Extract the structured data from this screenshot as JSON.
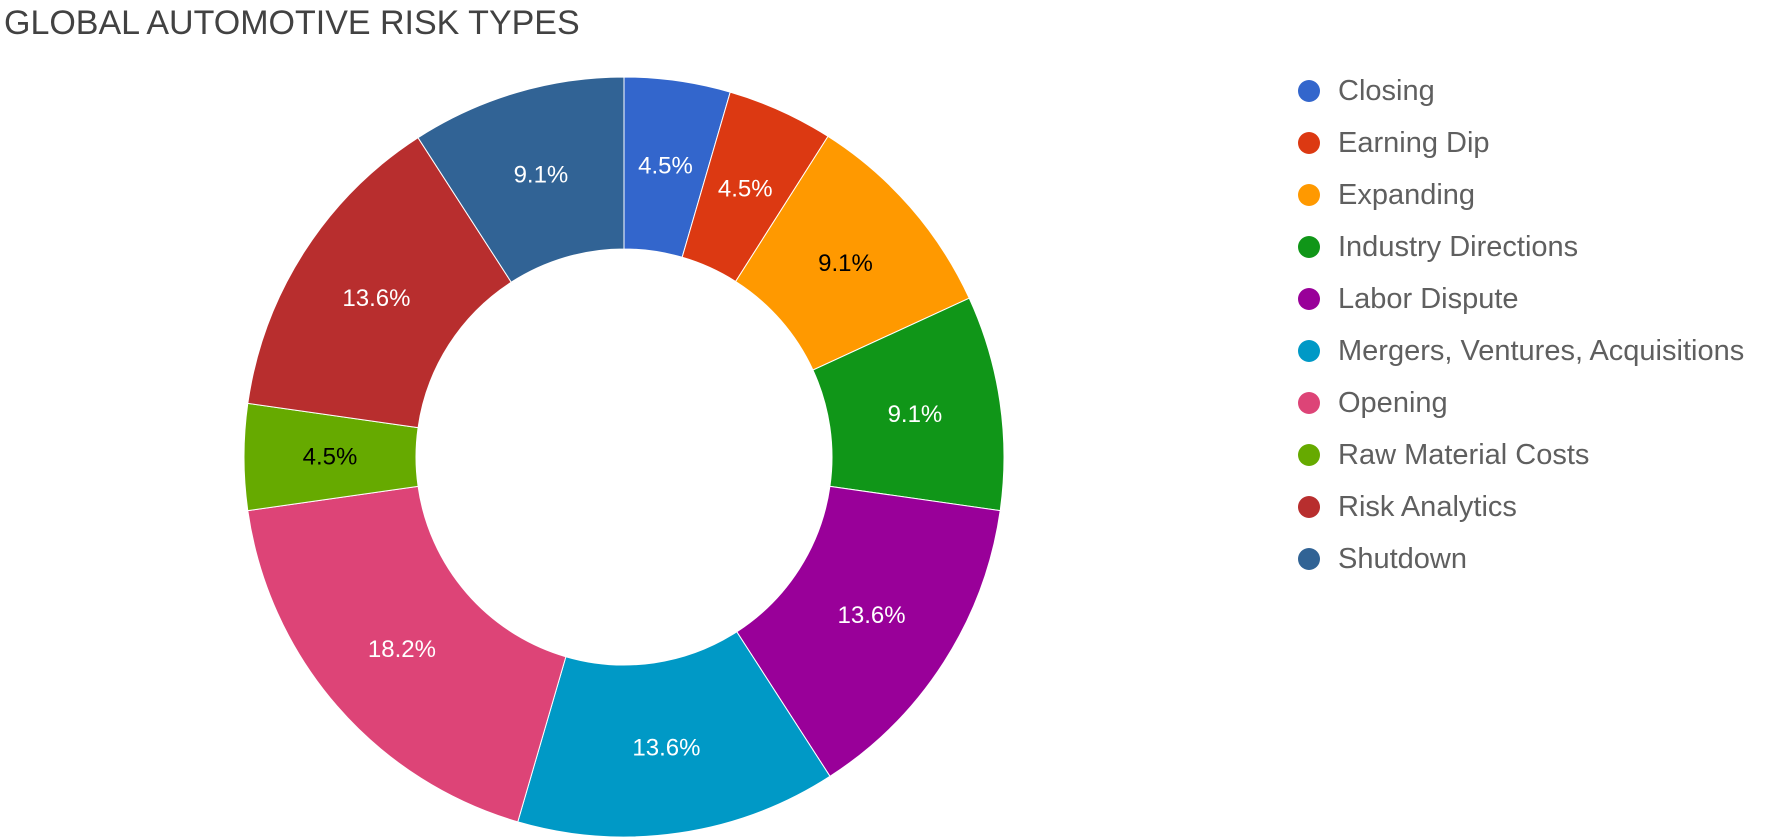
{
  "chart_data": {
    "type": "pie",
    "title": "GLOBAL AUTOMOTIVE RISK TYPES",
    "donut": true,
    "legend_position": "right",
    "slices": [
      {
        "label": "Closing",
        "value": 4.5,
        "display": "4.5%",
        "color": "#3366cc",
        "label_color": "#ffffff"
      },
      {
        "label": "Earning Dip",
        "value": 4.5,
        "display": "4.5%",
        "color": "#dc3912",
        "label_color": "#ffffff"
      },
      {
        "label": "Expanding",
        "value": 9.1,
        "display": "9.1%",
        "color": "#ff9900",
        "label_color": "#000000"
      },
      {
        "label": "Industry Directions",
        "value": 9.1,
        "display": "9.1%",
        "color": "#109618",
        "label_color": "#ffffff"
      },
      {
        "label": "Labor Dispute",
        "value": 13.6,
        "display": "13.6%",
        "color": "#990099",
        "label_color": "#ffffff"
      },
      {
        "label": "Mergers, Ventures, Acquisitions",
        "value": 13.6,
        "display": "13.6%",
        "color": "#0099c6",
        "label_color": "#ffffff"
      },
      {
        "label": "Opening",
        "value": 18.2,
        "display": "18.2%",
        "color": "#dd4477",
        "label_color": "#ffffff"
      },
      {
        "label": "Raw Material Costs",
        "value": 4.5,
        "display": "4.5%",
        "color": "#66aa00",
        "label_color": "#000000"
      },
      {
        "label": "Risk Analytics",
        "value": 13.6,
        "display": "13.6%",
        "color": "#b82e2e",
        "label_color": "#ffffff"
      },
      {
        "label": "Shutdown",
        "value": 9.1,
        "display": "9.1%",
        "color": "#316395",
        "label_color": "#ffffff"
      }
    ]
  }
}
